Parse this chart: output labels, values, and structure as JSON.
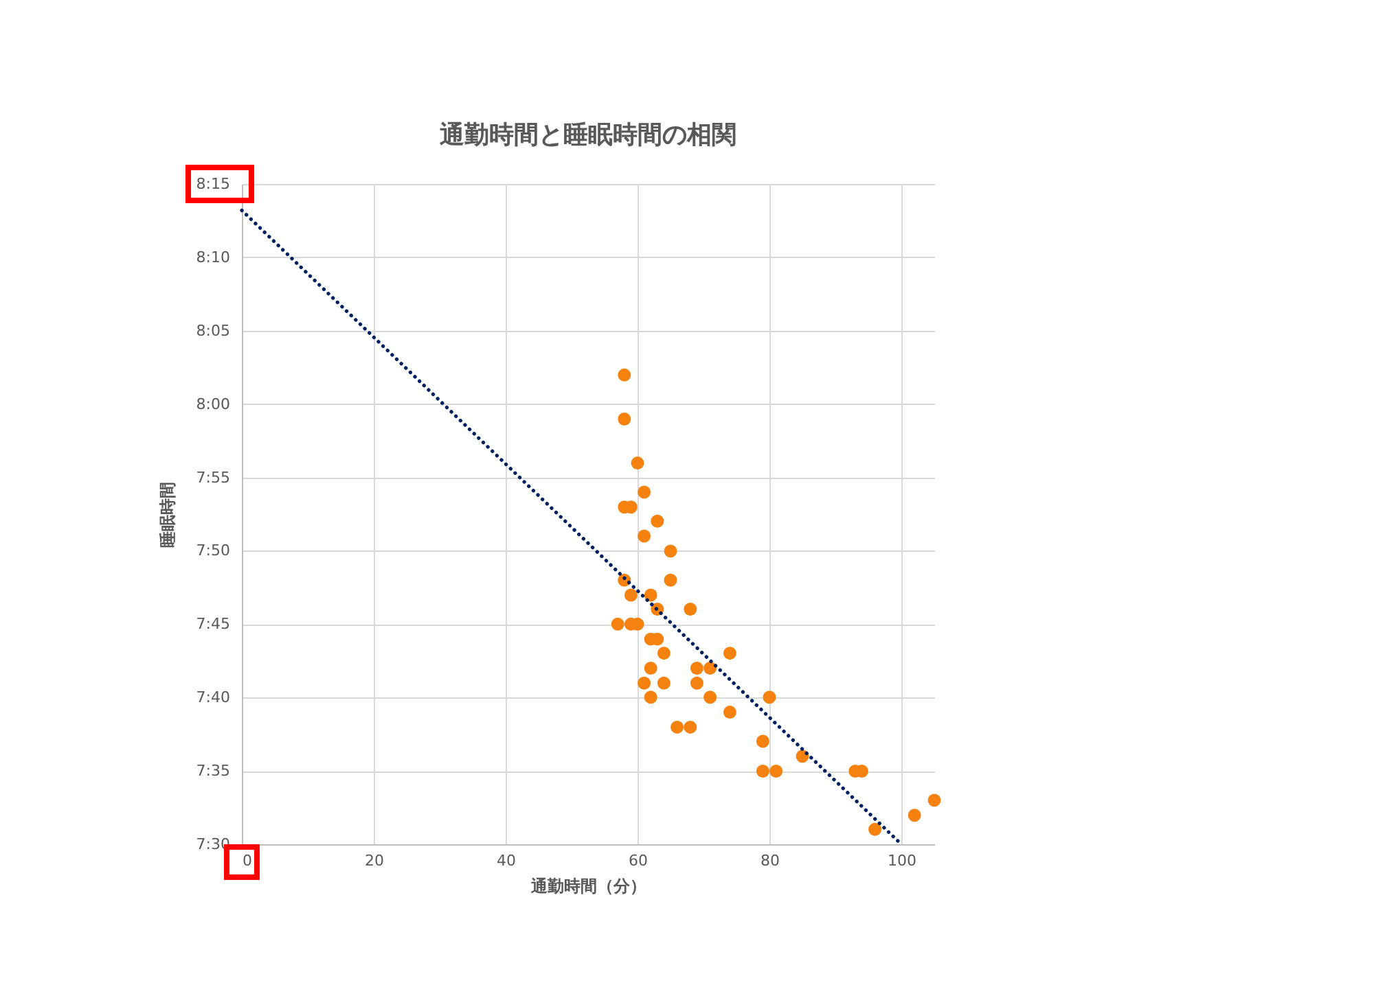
{
  "chart_data": {
    "type": "scatter",
    "title": "通勤時間と睡眠時間の相関",
    "xlabel": "通勤時間（分）",
    "ylabel": "睡眠時間",
    "xlim": [
      0,
      105
    ],
    "xticks": [
      0,
      20,
      40,
      60,
      80,
      100
    ],
    "ylim": [
      7.5,
      8.25
    ],
    "yticks": [
      {
        "value": 7.5,
        "label": "7:30"
      },
      {
        "value": 7.5833,
        "label": "7:35"
      },
      {
        "value": 7.6667,
        "label": "7:40"
      },
      {
        "value": 7.75,
        "label": "7:45"
      },
      {
        "value": 7.8333,
        "label": "7:50"
      },
      {
        "value": 7.9167,
        "label": "7:55"
      },
      {
        "value": 8.0,
        "label": "8:00"
      },
      {
        "value": 8.0833,
        "label": "8:05"
      },
      {
        "value": 8.1667,
        "label": "8:10"
      },
      {
        "value": 8.25,
        "label": "8:15"
      }
    ],
    "grid": true,
    "series": [
      {
        "color": "#f5820f",
        "marker": "circle",
        "x": [
          58,
          58,
          60,
          61,
          58,
          59,
          63,
          61,
          65,
          58,
          65,
          59,
          62,
          63,
          68,
          57,
          59,
          60,
          62,
          63,
          64,
          74,
          62,
          69,
          71,
          61,
          64,
          69,
          62,
          71,
          80,
          74,
          66,
          68,
          79,
          85,
          79,
          81,
          93,
          94,
          105,
          102,
          96
        ],
        "values": [
          8.033,
          7.983,
          7.933,
          7.9,
          7.883,
          7.883,
          7.867,
          7.85,
          7.833,
          7.8,
          7.8,
          7.783,
          7.783,
          7.767,
          7.767,
          7.75,
          7.75,
          7.75,
          7.733,
          7.733,
          7.717,
          7.717,
          7.7,
          7.7,
          7.7,
          7.683,
          7.683,
          7.683,
          7.667,
          7.667,
          7.667,
          7.65,
          7.633,
          7.633,
          7.617,
          7.6,
          7.583,
          7.583,
          7.583,
          7.583,
          7.55,
          7.533,
          7.517
        ]
      },
      {
        "type": "line",
        "color": "#002060",
        "line_style": "dotted",
        "x": [
          0,
          100
        ],
        "values": [
          8.22,
          7.5
        ]
      }
    ]
  }
}
